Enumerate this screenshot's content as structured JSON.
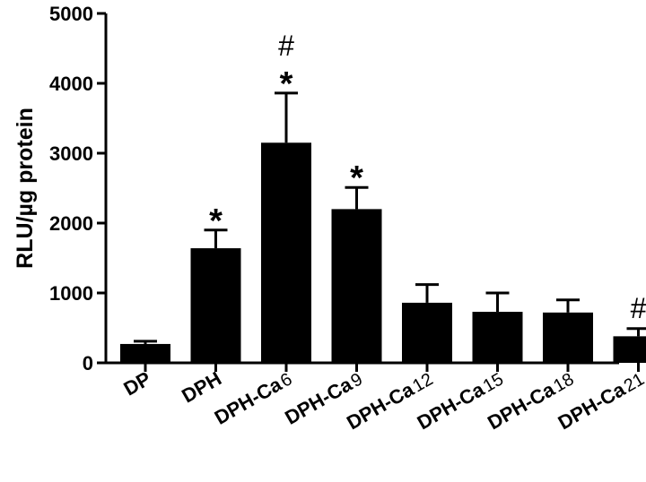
{
  "chart_data": {
    "type": "bar",
    "title": "",
    "xlabel": "",
    "ylabel": "RLU/µg protein",
    "ylim": [
      0,
      5000
    ],
    "yticks": [
      0,
      1000,
      2000,
      3000,
      4000,
      5000
    ],
    "grid": false,
    "legend": "none",
    "bar_color": "#000000",
    "categories": [
      {
        "main": "DP",
        "sub": ""
      },
      {
        "main": "DPH",
        "sub": ""
      },
      {
        "main": "DPH-Ca",
        "sub": "6"
      },
      {
        "main": "DPH-Ca",
        "sub": "9"
      },
      {
        "main": "DPH-Ca",
        "sub": "12"
      },
      {
        "main": "DPH-Ca",
        "sub": "15"
      },
      {
        "main": "DPH-Ca",
        "sub": "18"
      },
      {
        "main": "DPH-Ca",
        "sub": "21"
      }
    ],
    "values": [
      270,
      1640,
      3150,
      2200,
      860,
      730,
      720,
      380
    ],
    "errors": [
      40,
      260,
      710,
      310,
      260,
      270,
      180,
      110
    ],
    "annotations": [
      [],
      [
        "*"
      ],
      [
        "*",
        "#"
      ],
      [
        "*"
      ],
      [],
      [],
      [],
      [
        "#"
      ]
    ]
  }
}
